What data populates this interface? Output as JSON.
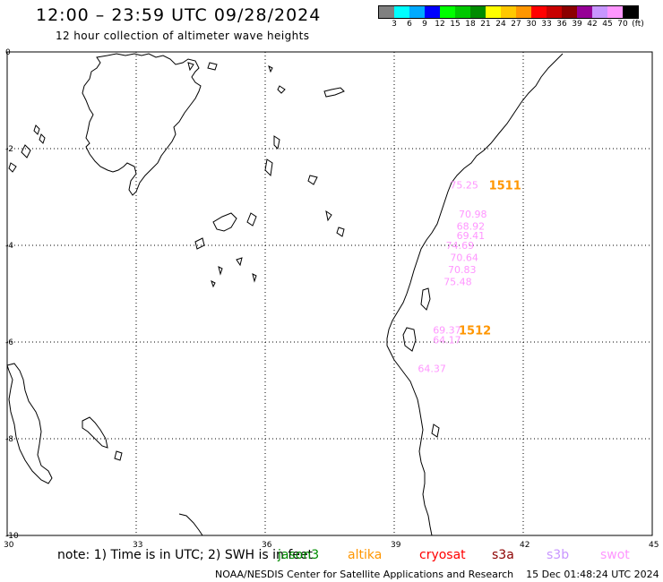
{
  "title": "12:00 – 23:59 UTC 09/28/2024",
  "subtitle": "12 hour collection of altimeter wave heights",
  "legend": {
    "colors": [
      "#808080",
      "#00ffff",
      "#00aaff",
      "#0000ff",
      "#00ff00",
      "#00c800",
      "#008c00",
      "#ffff00",
      "#ffc800",
      "#ff9600",
      "#ff0000",
      "#c80000",
      "#8c0000",
      "#960096",
      "#c896ff",
      "#ff96ff",
      "#000000"
    ],
    "labels": [
      "3",
      "6",
      "9",
      "12",
      "15",
      "18",
      "21",
      "24",
      "27",
      "30",
      "33",
      "36",
      "39",
      "42",
      "45",
      "70",
      "(ft)"
    ]
  },
  "axes": {
    "x_ticks": [
      "30",
      "33",
      "36",
      "39",
      "42",
      "45"
    ],
    "y_ticks": [
      "0",
      "-2",
      "-4",
      "-6",
      "-8",
      "-10"
    ],
    "lon_range": [
      30,
      45
    ],
    "lat_range": [
      -10,
      0
    ]
  },
  "observations": [
    {
      "value": "75.25",
      "lon": 40.3,
      "lat": -2.75,
      "color": "#ff96ff"
    },
    {
      "value": "70.98",
      "lon": 40.5,
      "lat": -3.35,
      "color": "#ff96ff"
    },
    {
      "value": "68.92",
      "lon": 40.45,
      "lat": -3.6,
      "color": "#ff96ff"
    },
    {
      "value": "69.41",
      "lon": 40.45,
      "lat": -3.8,
      "color": "#ff96ff"
    },
    {
      "value": "74.69",
      "lon": 40.2,
      "lat": -4.0,
      "color": "#ff96ff"
    },
    {
      "value": "70.64",
      "lon": 40.3,
      "lat": -4.25,
      "color": "#ff96ff"
    },
    {
      "value": "70.83",
      "lon": 40.25,
      "lat": -4.5,
      "color": "#ff96ff"
    },
    {
      "value": "75.48",
      "lon": 40.15,
      "lat": -4.75,
      "color": "#ff96ff"
    },
    {
      "value": "69.37",
      "lon": 39.9,
      "lat": -5.75,
      "color": "#ff96ff"
    },
    {
      "value": "64.17",
      "lon": 39.9,
      "lat": -5.95,
      "color": "#ff96ff"
    },
    {
      "value": "64.37",
      "lon": 39.55,
      "lat": -6.55,
      "color": "#ff96ff"
    }
  ],
  "passes": [
    {
      "label": "1511",
      "lon": 41.2,
      "lat": -2.75,
      "color": "#ff9600"
    },
    {
      "label": "1512",
      "lon": 40.5,
      "lat": -5.75,
      "color": "#ff9600"
    }
  ],
  "notes": {
    "text": "note:  1) Time is in UTC;  2) SWH is in feet",
    "satellites": [
      {
        "name": "jason3",
        "color": "#008c00"
      },
      {
        "name": "altika",
        "color": "#ff9600"
      },
      {
        "name": "cryosat",
        "color": "#ff0000"
      },
      {
        "name": "s3a",
        "color": "#8c0000"
      },
      {
        "name": "s3b",
        "color": "#c896ff"
      },
      {
        "name": "swot",
        "color": "#ff96ff"
      }
    ]
  },
  "footer": "NOAA/NESDIS Center for Satellite Applications and Research    15 Dec 01:48:24 UTC 2024"
}
